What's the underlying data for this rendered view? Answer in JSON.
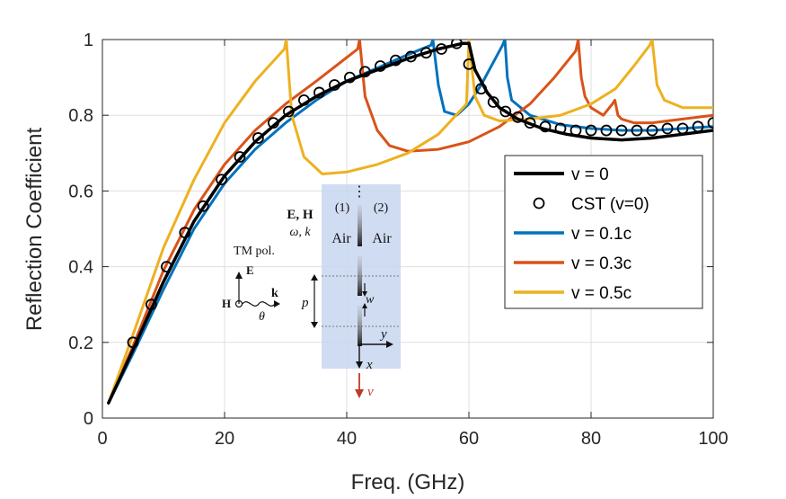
{
  "chart_data": {
    "type": "line",
    "xlabel": "Freq. (GHz)",
    "ylabel": "Reflection Coefficient",
    "xlim": [
      0,
      100
    ],
    "ylim": [
      0,
      1
    ],
    "x_ticks": [
      0,
      20,
      40,
      60,
      80,
      100
    ],
    "y_ticks": [
      0,
      0.2,
      0.4,
      0.6,
      0.8,
      1
    ],
    "x_tick_labels": [
      "0",
      "20",
      "40",
      "60",
      "80",
      "100"
    ],
    "y_tick_labels": [
      "0",
      "0.2",
      "0.4",
      "0.6",
      "0.8",
      "1"
    ],
    "grid": true,
    "legend_position": "right",
    "series": [
      {
        "name": "v = 0",
        "style": "line",
        "color": "#000000",
        "x": [
          1,
          5,
          10,
          15,
          20,
          25,
          30,
          35,
          40,
          45,
          50,
          55,
          59,
          60,
          61,
          63,
          65,
          68,
          72,
          76,
          80,
          85,
          90,
          95,
          100
        ],
        "y": [
          0.04,
          0.18,
          0.36,
          0.52,
          0.64,
          0.73,
          0.8,
          0.85,
          0.89,
          0.92,
          0.95,
          0.975,
          0.99,
          0.99,
          0.92,
          0.86,
          0.82,
          0.79,
          0.765,
          0.75,
          0.74,
          0.735,
          0.74,
          0.75,
          0.76
        ]
      },
      {
        "name": "CST (v=0)",
        "style": "markers",
        "color": "#000000",
        "x": [
          5,
          8,
          10.5,
          13.5,
          16.5,
          19.5,
          22.5,
          25.5,
          28,
          30.5,
          33,
          35.5,
          38,
          40.5,
          43,
          45.5,
          48,
          50.5,
          53,
          55.5,
          58,
          60,
          62,
          64,
          66,
          68,
          70,
          72.5,
          75,
          77.5,
          80,
          82.5,
          85,
          87.5,
          90,
          92.5,
          95,
          97.5,
          100
        ],
        "y": [
          0.2,
          0.3,
          0.4,
          0.49,
          0.56,
          0.63,
          0.69,
          0.74,
          0.78,
          0.81,
          0.84,
          0.86,
          0.88,
          0.9,
          0.915,
          0.93,
          0.945,
          0.955,
          0.965,
          0.975,
          0.99,
          0.935,
          0.87,
          0.835,
          0.81,
          0.795,
          0.78,
          0.77,
          0.765,
          0.76,
          0.76,
          0.76,
          0.76,
          0.76,
          0.76,
          0.765,
          0.765,
          0.77,
          0.78
        ]
      },
      {
        "name": "v = 0.1c",
        "style": "line",
        "color": "#0072BD",
        "x": [
          1,
          5,
          10,
          15,
          20,
          25,
          30,
          35,
          40,
          45,
          50,
          53.8,
          54.1,
          55,
          56,
          58,
          60,
          62,
          64,
          65.5,
          65.9,
          66.3,
          67,
          70,
          75,
          80,
          85,
          90,
          95,
          100
        ],
        "y": [
          0.04,
          0.17,
          0.34,
          0.5,
          0.62,
          0.71,
          0.78,
          0.84,
          0.89,
          0.925,
          0.96,
          0.985,
          1,
          0.88,
          0.81,
          0.8,
          0.83,
          0.88,
          0.94,
          0.985,
          1,
          0.9,
          0.84,
          0.8,
          0.775,
          0.765,
          0.76,
          0.76,
          0.765,
          0.77
        ]
      },
      {
        "name": "v = 0.3c",
        "style": "line",
        "color": "#D95319",
        "x": [
          1,
          5,
          10,
          15,
          20,
          25,
          30,
          35,
          41.8,
          42.1,
          43,
          45,
          47,
          50,
          55,
          60,
          65,
          70,
          74,
          77.5,
          77.9,
          78.4,
          79,
          80,
          82,
          83.5,
          83.9,
          84.4,
          85,
          87,
          90,
          95,
          100
        ],
        "y": [
          0.04,
          0.19,
          0.39,
          0.55,
          0.67,
          0.76,
          0.83,
          0.89,
          0.975,
          1,
          0.85,
          0.76,
          0.72,
          0.705,
          0.71,
          0.73,
          0.77,
          0.83,
          0.9,
          0.97,
          1,
          0.9,
          0.85,
          0.82,
          0.8,
          0.83,
          0.84,
          0.8,
          0.79,
          0.78,
          0.78,
          0.79,
          0.8
        ]
      },
      {
        "name": "v = 0.5c",
        "style": "line",
        "color": "#EDB120",
        "x": [
          1,
          5,
          10,
          15,
          20,
          25,
          29.8,
          30.1,
          31,
          33,
          36,
          40,
          45,
          50,
          55,
          59.6,
          60,
          61,
          62.5,
          65,
          70,
          75,
          80,
          84,
          87,
          89.6,
          90,
          90.8,
          92,
          95,
          100
        ],
        "y": [
          0.04,
          0.22,
          0.45,
          0.63,
          0.78,
          0.89,
          0.975,
          1,
          0.8,
          0.69,
          0.645,
          0.65,
          0.67,
          0.7,
          0.75,
          0.83,
          1,
          0.85,
          0.8,
          0.785,
          0.79,
          0.8,
          0.83,
          0.87,
          0.93,
          0.985,
          1,
          0.88,
          0.84,
          0.82,
          0.82
        ]
      }
    ],
    "inset": {
      "polarization_label": "TM pol.",
      "field_label": "E, H",
      "wave_label": "ω, k",
      "e_vec": "E",
      "h_vec": "H",
      "k_vec": "k",
      "angle": "θ",
      "region_1": "(1)",
      "region_2": "(2)",
      "medium_1": "Air",
      "medium_2": "Air",
      "period": "p",
      "width": "w",
      "y_axis": "y",
      "x_axis": "x",
      "velocity": "v",
      "dots": "⋮"
    }
  }
}
